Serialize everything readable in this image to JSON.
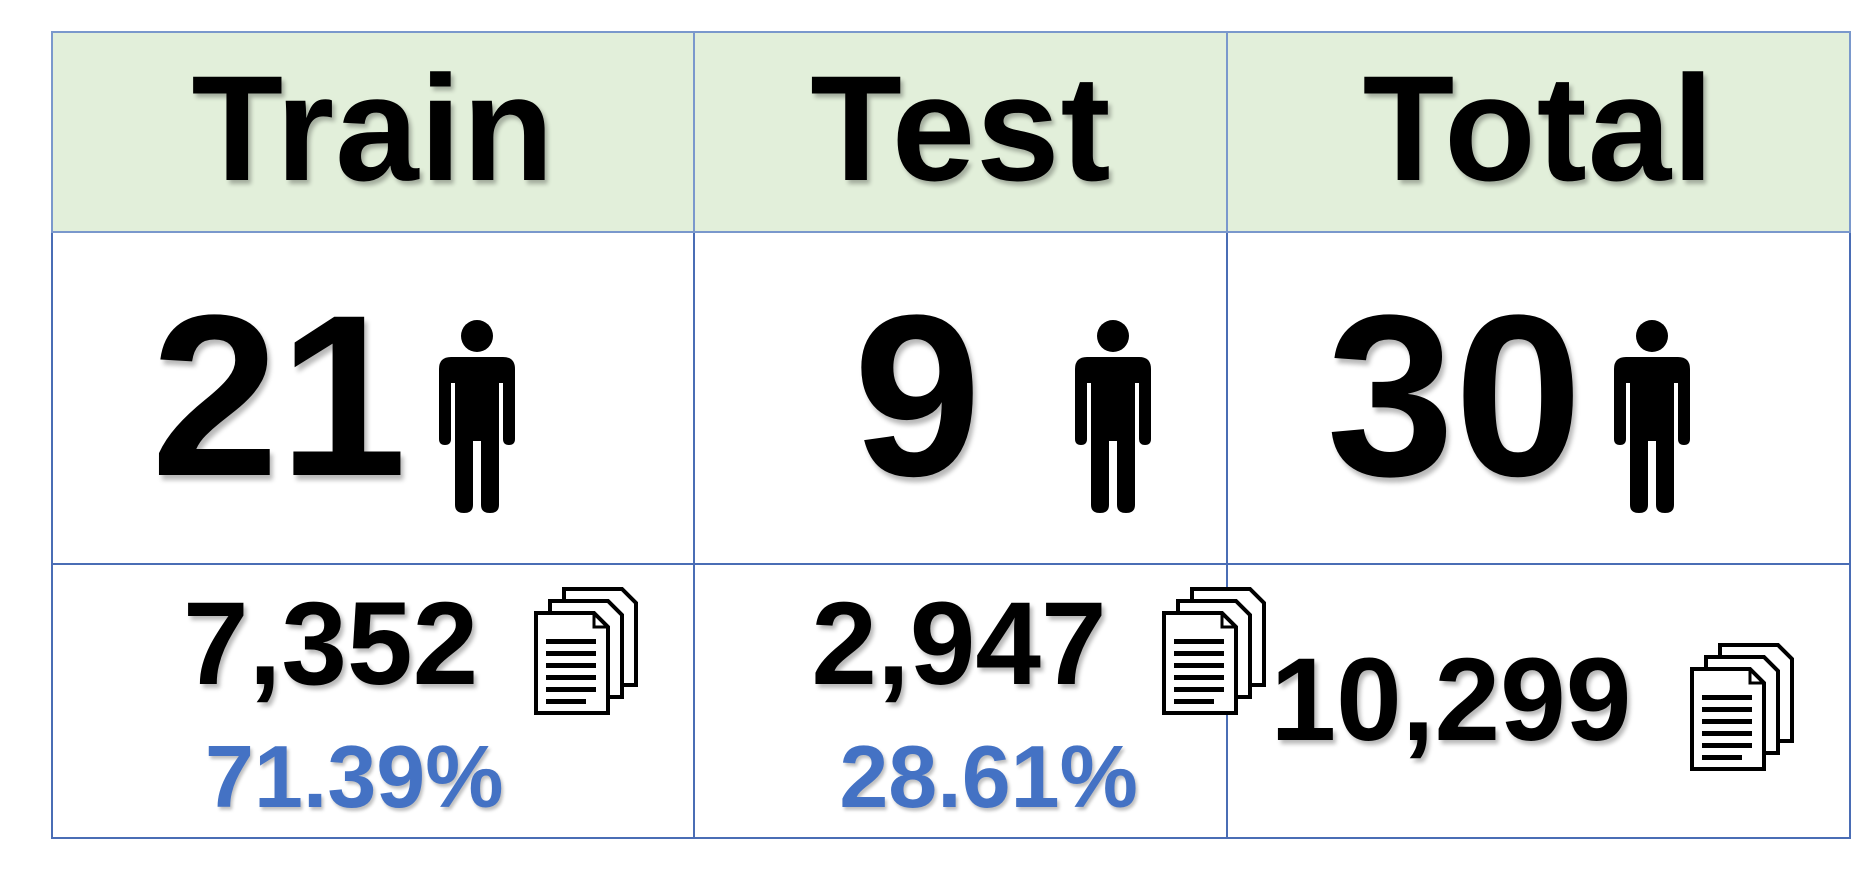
{
  "columns": [
    {
      "label": "Train",
      "subjects": "21",
      "samples": "7,352",
      "percent": "71.39%"
    },
    {
      "label": "Test",
      "subjects": "9",
      "samples": "2,947",
      "percent": "28.61%"
    },
    {
      "label": "Total",
      "subjects": "30",
      "samples": "10,299",
      "percent": ""
    }
  ],
  "icons": {
    "subjects": "person-icon",
    "samples": "documents-icon"
  },
  "colors": {
    "header_bg": "#e2efda",
    "border": "#4a6db5",
    "percent_text": "#4472c4",
    "text": "#000000"
  }
}
